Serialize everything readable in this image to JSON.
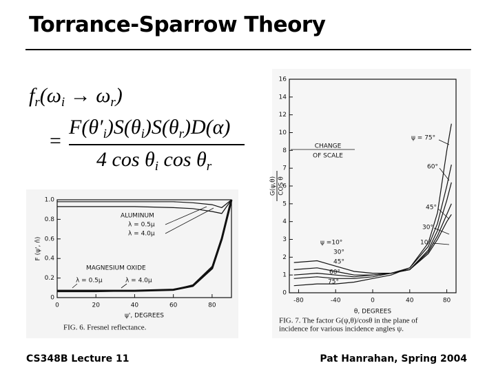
{
  "title": "Torrance-Sparrow Theory",
  "formula": {
    "lhs": [
      "f",
      "r",
      "(ω",
      "i",
      " → ω",
      "r",
      ")"
    ],
    "equals": "=",
    "numerator": [
      "F(θ′",
      "i",
      ")S(θ",
      "i",
      ")S(θ",
      "r",
      ")D(α)"
    ],
    "denominator": [
      "4 cos θ",
      "i",
      " cos θ",
      "r"
    ]
  },
  "figures": [
    {
      "type": "line",
      "caption": [
        "FIG. 6. Fresnel reflectance."
      ],
      "xlabel": "ψ', DEGREES",
      "ylabel": [
        "F (ψ', n̂)"
      ],
      "xlim": [
        0,
        90
      ],
      "xticks": [
        0,
        20,
        40,
        60,
        80
      ],
      "ylim": [
        0,
        1
      ],
      "yticks": [
        0,
        0.2,
        0.4,
        0.6,
        0.8,
        {
          "value": 1,
          "label": "1.0"
        }
      ],
      "x": [
        0,
        20,
        40,
        60,
        70,
        80,
        85,
        90
      ],
      "series": [
        {
          "color": "#111",
          "width": 1.2,
          "values": [
            0.93,
            0.93,
            0.93,
            0.92,
            0.91,
            0.88,
            0.86,
            1.0
          ]
        },
        {
          "color": "#111",
          "width": 1.2,
          "values": [
            0.98,
            0.98,
            0.98,
            0.98,
            0.97,
            0.95,
            0.92,
            1.0
          ]
        },
        {
          "color": "#111",
          "width": 3,
          "values": [
            0.07,
            0.07,
            0.07,
            0.08,
            0.12,
            0.3,
            0.6,
            1.0
          ]
        },
        {
          "color": "#111",
          "width": 1.2,
          "values": [
            0.06,
            0.06,
            0.07,
            0.08,
            0.13,
            0.32,
            0.62,
            1.0
          ]
        }
      ],
      "annotations": [
        "ALUMINUM",
        "λ = 0.5μ",
        "λ = 4.0μ",
        "MAGNESIUM OXIDE",
        "λ = 0.5μ",
        "λ = 4.0μ"
      ]
    },
    {
      "type": "line",
      "caption": [
        "FIG. 7. The factor G(ψ,θ)/cosθ in the plane of",
        "incidence for various incidence angles ψ."
      ],
      "xlabel": "θ, DEGREES",
      "ylabel": [
        "G(ψ,θ)",
        "COS θ"
      ],
      "xlim": [
        -90,
        90
      ],
      "xticks": [
        -80,
        -40,
        0,
        40,
        80
      ],
      "ylim": [
        0,
        16
      ],
      "yticks": [
        0,
        1,
        2,
        3,
        4,
        5,
        6,
        7,
        8,
        10,
        12,
        14,
        16
      ],
      "x": [
        -85,
        -60,
        -40,
        -20,
        0,
        20,
        40,
        60,
        70,
        80,
        85
      ],
      "series": [
        {
          "name": "ψ =10°",
          "color": "#111",
          "width": 1.2,
          "values": [
            1.7,
            1.8,
            1.5,
            1.2,
            1.1,
            1.1,
            1.3,
            2.2,
            3.0,
            4.0,
            4.4
          ]
        },
        {
          "name": "30°",
          "color": "#111",
          "width": 1.2,
          "values": [
            1.3,
            1.4,
            1.2,
            1.0,
            1.0,
            1.1,
            1.3,
            2.3,
            3.2,
            4.4,
            5.0
          ]
        },
        {
          "name": "45°",
          "color": "#111",
          "width": 1.2,
          "values": [
            1.0,
            1.1,
            1.0,
            0.9,
            1.0,
            1.1,
            1.3,
            2.4,
            3.5,
            5.2,
            6.2
          ]
        },
        {
          "name": "60°",
          "color": "#111",
          "width": 1.2,
          "values": [
            0.8,
            0.9,
            0.8,
            0.8,
            0.9,
            1.1,
            1.4,
            2.6,
            3.9,
            6.0,
            7.2
          ]
        },
        {
          "name": "75°",
          "color": "#111",
          "width": 1.2,
          "values": [
            0.4,
            0.5,
            0.5,
            0.6,
            0.8,
            1.0,
            1.4,
            2.8,
            4.5,
            8.0,
            11
          ]
        }
      ],
      "annotations": [
        "ψ = 75°",
        "60°",
        "45°",
        "30°",
        "10°",
        "CHANGE",
        "OF SCALE"
      ]
    }
  ],
  "footer": {
    "left": "CS348B Lecture 11",
    "right": "Pat Hanrahan, Spring 2004"
  }
}
